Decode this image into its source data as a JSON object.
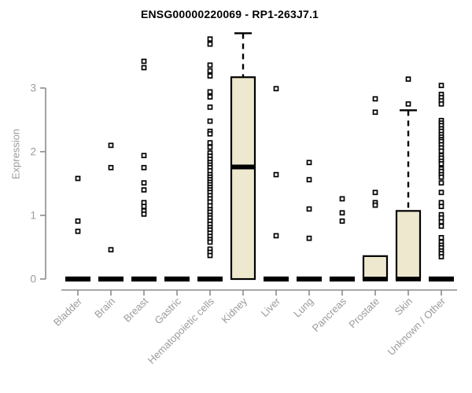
{
  "colors": {
    "background": "#FFFFFF",
    "box_fill": "#EDE8CE",
    "box_stroke": "#000000",
    "point_stroke": "#000000",
    "point_fill": "#FFFFFF",
    "axis_line": "#8C8C8C",
    "tick_label": "#9B9B9B",
    "title_text": "#000000"
  },
  "chart_data": {
    "type": "boxplot",
    "title": "ENSG00000220069 - RP1-263J7.1",
    "xlabel": "",
    "ylabel": "Expression",
    "ylim": [
      0,
      3.9
    ],
    "yticks": [
      0,
      1,
      2,
      3
    ],
    "grid": false,
    "legend": false,
    "categories": [
      "Bladder",
      "Brain",
      "Breast",
      "Gastric",
      "Hematopoietic cells",
      "Kidney",
      "Liver",
      "Lung",
      "Pancreas",
      "Prostate",
      "Skin",
      "Unknown / Other"
    ],
    "boxes": [
      {
        "category": "Bladder",
        "q1": 0,
        "median": 0,
        "q3": 0,
        "whisker_high": 0,
        "outliers": [
          1.58,
          0.91,
          0.75
        ]
      },
      {
        "category": "Brain",
        "q1": 0,
        "median": 0,
        "q3": 0,
        "whisker_high": 0,
        "outliers": [
          2.1,
          1.75,
          0.46
        ]
      },
      {
        "category": "Breast",
        "q1": 0,
        "median": 0,
        "q3": 0,
        "whisker_high": 0,
        "outliers": [
          3.42,
          3.32,
          1.94,
          1.75,
          1.51,
          1.4,
          1.2,
          1.14,
          1.07,
          1.02
        ]
      },
      {
        "category": "Gastric",
        "q1": 0,
        "median": 0,
        "q3": 0,
        "whisker_high": 0,
        "outliers": []
      },
      {
        "category": "Hematopoietic cells",
        "q1": 0,
        "median": 0,
        "q3": 0,
        "whisker_high": 0,
        "outliers": [
          3.77,
          3.69,
          3.36,
          3.27,
          3.19,
          2.94,
          2.86,
          2.7,
          2.48,
          2.32,
          2.28,
          2.14,
          2.07,
          1.98,
          1.93,
          1.88,
          1.83,
          1.79,
          1.75,
          1.7,
          1.64,
          1.6,
          1.56,
          1.52,
          1.48,
          1.44,
          1.4,
          1.36,
          1.31,
          1.26,
          1.21,
          1.15,
          1.09,
          1.05,
          1.0,
          0.96,
          0.91,
          0.86,
          0.81,
          0.77,
          0.72,
          0.67,
          0.62,
          0.58,
          0.47,
          0.42,
          0.37
        ]
      },
      {
        "category": "Kidney",
        "q1": 0,
        "median": 1.76,
        "q3": 3.17,
        "whisker_high": 3.86,
        "outliers": []
      },
      {
        "category": "Liver",
        "q1": 0,
        "median": 0,
        "q3": 0,
        "whisker_high": 0,
        "outliers": [
          2.99,
          1.64,
          0.68
        ]
      },
      {
        "category": "Lung",
        "q1": 0,
        "median": 0,
        "q3": 0,
        "whisker_high": 0,
        "outliers": [
          1.83,
          1.56,
          1.1,
          0.64
        ]
      },
      {
        "category": "Pancreas",
        "q1": 0,
        "median": 0,
        "q3": 0,
        "whisker_high": 0,
        "outliers": [
          1.26,
          1.04,
          0.91
        ]
      },
      {
        "category": "Prostate",
        "q1": 0,
        "median": 0,
        "q3": 0.36,
        "whisker_high": 0.36,
        "outliers": [
          2.83,
          2.62,
          1.36,
          1.2,
          1.16
        ]
      },
      {
        "category": "Skin",
        "q1": 0,
        "median": 0,
        "q3": 1.07,
        "whisker_high": 2.65,
        "outliers": [
          3.14,
          2.75
        ]
      },
      {
        "category": "Unknown / Other",
        "q1": 0,
        "median": 0,
        "q3": 0,
        "whisker_high": 0,
        "outliers": [
          3.04,
          2.9,
          2.85,
          2.8,
          2.75,
          2.49,
          2.45,
          2.41,
          2.36,
          2.32,
          2.27,
          2.23,
          2.19,
          2.16,
          2.11,
          2.06,
          2.01,
          1.94,
          1.9,
          1.85,
          1.81,
          1.73,
          1.69,
          1.64,
          1.6,
          1.51,
          1.36,
          1.2,
          1.14,
          1.01,
          0.96,
          0.9,
          0.83,
          0.65,
          0.58,
          0.53,
          0.49,
          0.44,
          0.4,
          0.35
        ]
      }
    ]
  }
}
